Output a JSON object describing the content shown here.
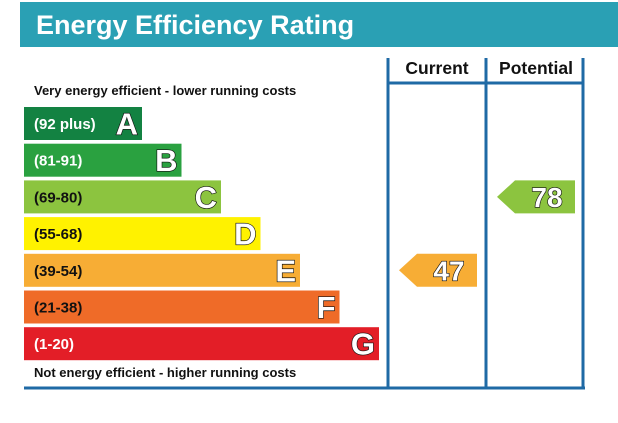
{
  "chart_data": {
    "type": "epc-rating",
    "title": "Energy Efficiency Rating",
    "top_note": "Very energy efficient - lower running costs",
    "bottom_note": "Not energy efficient - higher running costs",
    "columns": [
      "Current",
      "Potential"
    ],
    "bands": [
      {
        "letter": "A",
        "range": "(92 plus)",
        "color": "#138242"
      },
      {
        "letter": "B",
        "range": "(81-91)",
        "color": "#2aa140"
      },
      {
        "letter": "C",
        "range": "(69-80)",
        "color": "#8cc43f"
      },
      {
        "letter": "D",
        "range": "(55-68)",
        "color": "#fff200"
      },
      {
        "letter": "E",
        "range": "(39-54)",
        "color": "#f7ad35"
      },
      {
        "letter": "F",
        "range": "(21-38)",
        "color": "#ef6b28"
      },
      {
        "letter": "G",
        "range": "(1-20)",
        "color": "#e31e27"
      }
    ],
    "ratings": [
      {
        "column": "Current",
        "value": "47",
        "band": "E",
        "color": "#f7ad35"
      },
      {
        "column": "Potential",
        "value": "78",
        "band": "C",
        "color": "#8cc43f"
      }
    ]
  },
  "colors": {
    "title_bar": "#2aa0b4",
    "frame": "#1f6aa5",
    "range_text_light": "#ffffff",
    "range_text_dark": "#111111"
  }
}
